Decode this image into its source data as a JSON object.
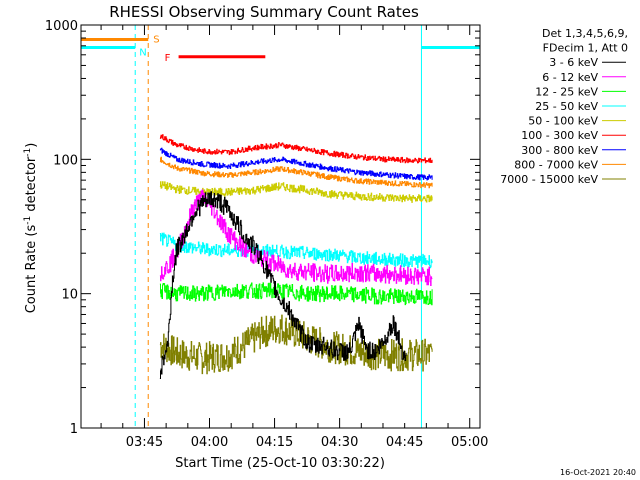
{
  "chart_data": {
    "type": "line",
    "title": "RHESSI Observing Summary Count Rates",
    "xlabel": "Start Time (25-Oct-10 03:30:22)",
    "ylabel_parts": {
      "main": "Count Rate (s",
      "sup1": "-1",
      "mid": " detector",
      "sup2": "-1",
      "end": ")"
    },
    "y_scale": "log",
    "ylim": [
      1,
      1000
    ],
    "xlim_minutes": [
      0,
      92
    ],
    "x_ticks": [
      {
        "label": "03:45",
        "min": 14.63
      },
      {
        "label": "04:00",
        "min": 29.63
      },
      {
        "label": "04:15",
        "min": 44.63
      },
      {
        "label": "04:30",
        "min": 59.63
      },
      {
        "label": "04:45",
        "min": 74.63
      },
      {
        "label": "05:00",
        "min": 89.63
      }
    ],
    "y_ticks": [
      {
        "label": "1",
        "value": 1
      },
      {
        "label": "10",
        "value": 10
      },
      {
        "label": "100",
        "value": 100
      },
      {
        "label": "1000",
        "value": 1000
      }
    ],
    "legend_header": [
      "Det 1,3,4,5,6,9,",
      "FDecim 1, Att 0"
    ],
    "series": [
      {
        "name": "3 - 6 keV",
        "color": "#000000",
        "noise": 0.07,
        "points": [
          [
            18.2,
            2.6
          ],
          [
            20.0,
            4.3
          ],
          [
            21.0,
            12.0
          ],
          [
            22.0,
            21.0
          ],
          [
            24.0,
            28.0
          ],
          [
            26.0,
            40.0
          ],
          [
            28.0,
            47.0
          ],
          [
            30.0,
            51.0
          ],
          [
            32.0,
            48.0
          ],
          [
            34.0,
            42.0
          ],
          [
            36.0,
            33.0
          ],
          [
            38.0,
            26.0
          ],
          [
            40.0,
            22.0
          ],
          [
            42.0,
            17.0
          ],
          [
            44.0,
            12.0
          ],
          [
            46.0,
            9.0
          ],
          [
            48.0,
            7.5
          ],
          [
            50.0,
            5.5
          ],
          [
            52.0,
            4.4
          ],
          [
            54.0,
            4.0
          ],
          [
            56.0,
            4.2
          ],
          [
            58.0,
            3.8
          ],
          [
            60.0,
            3.7
          ],
          [
            62.0,
            3.7
          ],
          [
            64.0,
            5.8
          ],
          [
            66.0,
            3.8
          ],
          [
            68.0,
            3.7
          ],
          [
            70.0,
            4.5
          ],
          [
            72.0,
            6.2
          ],
          [
            74.0,
            3.8
          ],
          [
            75.0,
            3.3
          ]
        ]
      },
      {
        "name": "6 - 12 keV",
        "color": "#ff00ff",
        "noise": 0.07,
        "points": [
          [
            18.2,
            14.5
          ],
          [
            20.0,
            16.0
          ],
          [
            22.0,
            20.0
          ],
          [
            24.0,
            30.0
          ],
          [
            26.0,
            45.0
          ],
          [
            28.0,
            52.0
          ],
          [
            30.0,
            45.0
          ],
          [
            32.0,
            35.0
          ],
          [
            34.0,
            28.0
          ],
          [
            36.0,
            24.0
          ],
          [
            38.0,
            21.0
          ],
          [
            40.0,
            19.0
          ],
          [
            44.0,
            17.0
          ],
          [
            48.0,
            15.0
          ],
          [
            52.0,
            14.5
          ],
          [
            56.0,
            14.0
          ],
          [
            60.0,
            14.0
          ],
          [
            64.0,
            14.5
          ],
          [
            68.0,
            14.0
          ],
          [
            72.0,
            14.0
          ],
          [
            78.0,
            13.5
          ],
          [
            81.0,
            13.5
          ]
        ]
      },
      {
        "name": "12 - 25 keV",
        "color": "#00ff00",
        "noise": 0.06,
        "points": [
          [
            18.2,
            10.5
          ],
          [
            22.0,
            10.0
          ],
          [
            28.0,
            10.0
          ],
          [
            34.0,
            10.5
          ],
          [
            40.0,
            10.5
          ],
          [
            46.0,
            10.5
          ],
          [
            52.0,
            10.0
          ],
          [
            58.0,
            10.0
          ],
          [
            64.0,
            9.8
          ],
          [
            70.0,
            9.5
          ],
          [
            76.0,
            9.5
          ],
          [
            81.0,
            9.5
          ]
        ]
      },
      {
        "name": "25 - 50 keV",
        "color": "#00ffff",
        "noise": 0.05,
        "points": [
          [
            18.2,
            26.0
          ],
          [
            22.0,
            23.0
          ],
          [
            28.0,
            21.5
          ],
          [
            34.0,
            21.0
          ],
          [
            40.0,
            21.0
          ],
          [
            46.0,
            20.5
          ],
          [
            52.0,
            20.0
          ],
          [
            58.0,
            19.5
          ],
          [
            64.0,
            18.5
          ],
          [
            70.0,
            18.0
          ],
          [
            76.0,
            17.5
          ],
          [
            81.0,
            17.5
          ]
        ]
      },
      {
        "name": "50 - 100 keV",
        "color": "#cccc00",
        "noise": 0.03,
        "points": [
          [
            18.2,
            65.0
          ],
          [
            22.0,
            60.0
          ],
          [
            28.0,
            57.0
          ],
          [
            34.0,
            57.0
          ],
          [
            40.0,
            59.0
          ],
          [
            46.0,
            63.0
          ],
          [
            52.0,
            59.0
          ],
          [
            58.0,
            55.0
          ],
          [
            64.0,
            53.0
          ],
          [
            70.0,
            52.0
          ],
          [
            76.0,
            51.0
          ],
          [
            81.0,
            51.0
          ]
        ]
      },
      {
        "name": "100 - 300 keV",
        "color": "#ff0000",
        "noise": 0.02,
        "points": [
          [
            18.2,
            150.0
          ],
          [
            22.0,
            128.0
          ],
          [
            28.0,
            115.0
          ],
          [
            34.0,
            113.0
          ],
          [
            40.0,
            122.0
          ],
          [
            46.0,
            128.0
          ],
          [
            52.0,
            118.0
          ],
          [
            58.0,
            110.0
          ],
          [
            64.0,
            104.0
          ],
          [
            70.0,
            100.0
          ],
          [
            76.0,
            98.0
          ],
          [
            81.0,
            98.0
          ]
        ]
      },
      {
        "name": "300 - 800 keV",
        "color": "#0000ff",
        "noise": 0.02,
        "points": [
          [
            18.2,
            118.0
          ],
          [
            22.0,
            100.0
          ],
          [
            28.0,
            92.0
          ],
          [
            34.0,
            89.0
          ],
          [
            40.0,
            95.0
          ],
          [
            46.0,
            100.0
          ],
          [
            52.0,
            92.0
          ],
          [
            58.0,
            85.0
          ],
          [
            64.0,
            80.0
          ],
          [
            70.0,
            77.0
          ],
          [
            76.0,
            74.0
          ],
          [
            81.0,
            73.0
          ]
        ]
      },
      {
        "name": "800 - 7000 keV",
        "color": "#ff8800",
        "noise": 0.02,
        "points": [
          [
            18.2,
            100.0
          ],
          [
            22.0,
            86.0
          ],
          [
            28.0,
            79.0
          ],
          [
            34.0,
            76.0
          ],
          [
            40.0,
            80.0
          ],
          [
            46.0,
            85.0
          ],
          [
            52.0,
            79.0
          ],
          [
            58.0,
            73.0
          ],
          [
            64.0,
            69.0
          ],
          [
            70.0,
            67.0
          ],
          [
            76.0,
            65.0
          ],
          [
            81.0,
            64.0
          ]
        ]
      },
      {
        "name": "7000 - 15000 keV",
        "color": "#808000",
        "noise": 0.12,
        "points": [
          [
            18.2,
            4.2
          ],
          [
            22.0,
            3.6
          ],
          [
            28.0,
            3.3
          ],
          [
            34.0,
            3.5
          ],
          [
            38.0,
            4.2
          ],
          [
            42.0,
            5.2
          ],
          [
            46.0,
            5.6
          ],
          [
            50.0,
            5.0
          ],
          [
            54.0,
            4.4
          ],
          [
            58.0,
            4.0
          ],
          [
            62.0,
            3.8
          ],
          [
            66.0,
            3.6
          ],
          [
            70.0,
            3.5
          ],
          [
            76.0,
            3.5
          ],
          [
            81.0,
            3.5
          ]
        ]
      }
    ],
    "night_bands": [
      {
        "label": "N",
        "color": "#00ffff",
        "level": 680,
        "intervals": [
          [
            0,
            12.5
          ],
          [
            78.5,
            92
          ]
        ]
      }
    ],
    "saa_band": {
      "label": "S",
      "color": "#ff8800",
      "level": 780,
      "interval": [
        0,
        15.5
      ]
    },
    "flare_band": {
      "label": "F",
      "color": "#ff0000",
      "level": 580,
      "interval": [
        22.5,
        42.5
      ]
    },
    "vlines": [
      {
        "min": 0.0,
        "color": "#00ffff",
        "style": "solid"
      },
      {
        "min": 12.5,
        "color": "#00ffff",
        "style": "dashed"
      },
      {
        "min": 15.5,
        "color": "#ff8800",
        "style": "dashed"
      },
      {
        "min": 78.5,
        "color": "#00ffff",
        "style": "solid"
      },
      {
        "min": 92.0,
        "color": "#00ffff",
        "style": "dashed"
      }
    ],
    "date_stamp": "16-Oct-2021 20:40"
  }
}
